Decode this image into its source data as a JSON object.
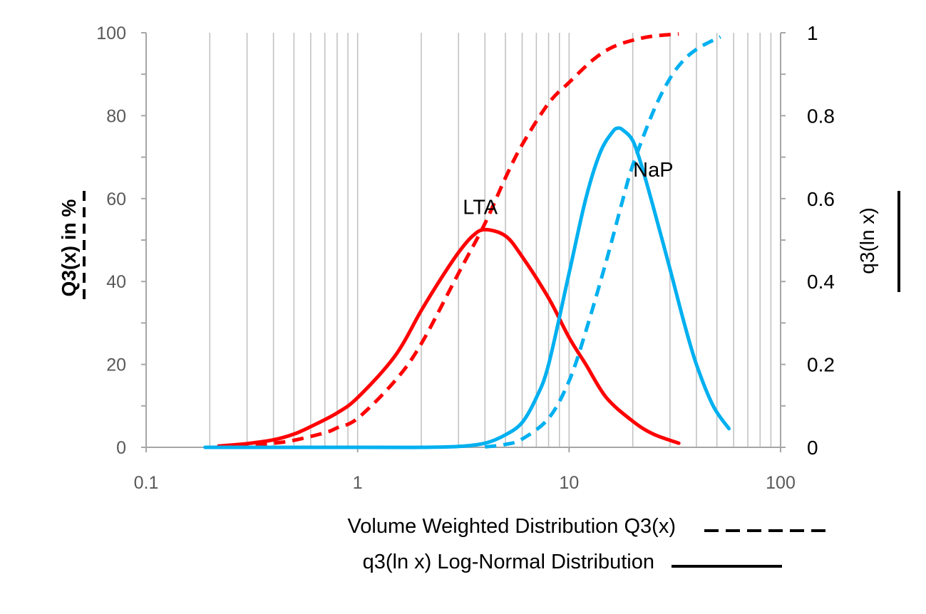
{
  "chart_data": {
    "type": "line",
    "xscale": "log",
    "xlim": [
      0.1,
      100
    ],
    "ylim_left": [
      0,
      100
    ],
    "ylim_right": [
      0,
      1
    ],
    "x_ticks": [
      "0.1",
      "1",
      "10",
      "100"
    ],
    "y_left_ticks": [
      "0",
      "20",
      "40",
      "60",
      "80",
      "100"
    ],
    "y_right_ticks": [
      "0",
      "0.2",
      "0.4",
      "0.6",
      "0.8",
      "1"
    ],
    "y_left_label": "Q3(x) in %",
    "y_right_label": "q3(ln x)",
    "grid": "vertical",
    "legend": [
      {
        "label": "Volume Weighted Distribution Q3(x)",
        "style": "dashed"
      },
      {
        "label": "q3(ln x) Log-Normal Distribution",
        "style": "solid"
      }
    ],
    "annotations": [
      {
        "text": "LTA",
        "x": 3.8,
        "y": 0.58
      },
      {
        "text": "NaP",
        "x": 25,
        "y": 0.67
      }
    ],
    "series": [
      {
        "name": "LTA",
        "quantity": "q3(ln x)",
        "axis": "right",
        "style": "solid",
        "color": "#ff0000",
        "x": [
          0.22,
          0.3,
          0.4,
          0.5,
          0.6,
          0.8,
          1.0,
          1.5,
          2.0,
          2.5,
          3.0,
          3.5,
          4.0,
          5.0,
          6.0,
          8.0,
          10,
          12,
          15,
          20,
          25,
          33
        ],
        "y": [
          0.003,
          0.009,
          0.018,
          0.032,
          0.05,
          0.083,
          0.12,
          0.22,
          0.33,
          0.41,
          0.47,
          0.51,
          0.525,
          0.51,
          0.46,
          0.36,
          0.265,
          0.2,
          0.12,
          0.063,
          0.032,
          0.01
        ]
      },
      {
        "name": "LTA",
        "quantity": "Q3(x)",
        "axis": "left",
        "style": "dashed",
        "color": "#ff0000",
        "x": [
          0.22,
          0.3,
          0.4,
          0.5,
          0.7,
          0.8,
          1.0,
          1.5,
          2.0,
          3.0,
          4.0,
          5.0,
          6.0,
          8.0,
          10,
          13,
          16,
          20,
          25,
          33
        ],
        "y": [
          0.2,
          0.5,
          1.0,
          1.7,
          3.5,
          4.7,
          7.0,
          16,
          25,
          42,
          54,
          65,
          73,
          83,
          88,
          93.5,
          96.5,
          98.2,
          99.2,
          99.7
        ]
      },
      {
        "name": "NaP",
        "quantity": "q3(ln x)",
        "axis": "right",
        "style": "solid",
        "color": "#00b0f0",
        "x": [
          0.19,
          1.0,
          2.0,
          3.0,
          4.0,
          5.0,
          6.0,
          7.0,
          8.0,
          10,
          12,
          14,
          16,
          17,
          18,
          20,
          22,
          25,
          30,
          35,
          40,
          48,
          57
        ],
        "y": [
          0.0,
          0.0,
          0.0,
          0.002,
          0.01,
          0.03,
          0.06,
          0.12,
          0.2,
          0.42,
          0.6,
          0.71,
          0.76,
          0.77,
          0.765,
          0.74,
          0.68,
          0.58,
          0.43,
          0.3,
          0.2,
          0.1,
          0.045
        ]
      },
      {
        "name": "NaP",
        "quantity": "Q3(x)",
        "axis": "left",
        "style": "dashed",
        "color": "#00b0f0",
        "x": [
          4.0,
          5.0,
          6.0,
          8.0,
          10,
          12,
          15,
          18,
          20,
          25,
          30,
          35,
          40,
          45,
          52
        ],
        "y": [
          0.1,
          0.7,
          2.0,
          7.0,
          16,
          28,
          45,
          60,
          68,
          81,
          89,
          93.5,
          96,
          97.5,
          99
        ]
      }
    ]
  }
}
